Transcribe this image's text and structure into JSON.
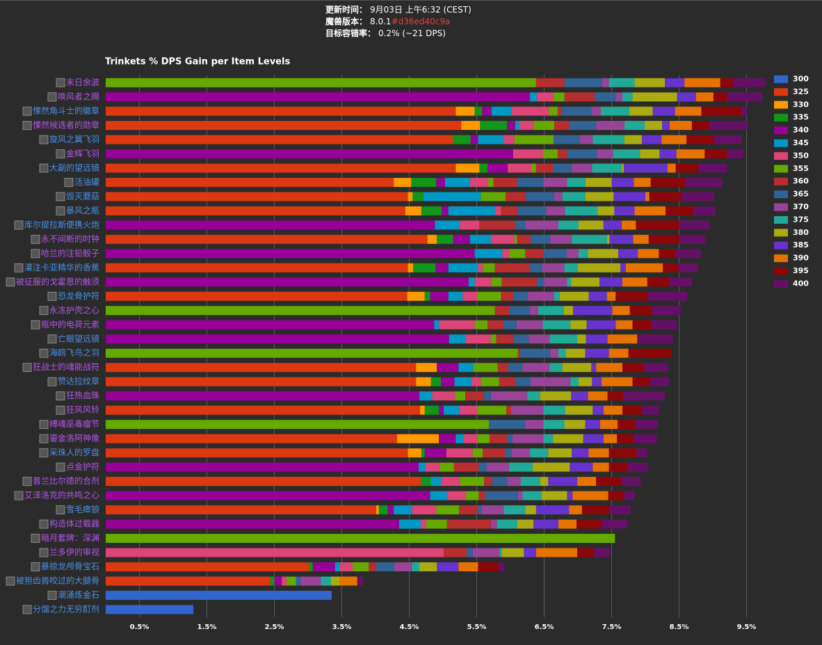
{
  "header": {
    "rows": [
      {
        "label": "更新时间：",
        "value": "9月03日 上午6:32 (CEST)"
      },
      {
        "label": "魔兽版本：",
        "value": "8.0.1",
        "extra": "#d36ed40c9a"
      },
      {
        "label": "目标容错率：",
        "value": "0.2% (~21 DPS)"
      }
    ]
  },
  "chart_data": {
    "type": "stacked_barh",
    "title": "Trinkets % DPS Gain per Item Levels",
    "categories": [
      "末日余波",
      "唤风者之赐",
      "慄然角斗士的徽章",
      "慄然候选者的勋章",
      "旋风之翼飞羽",
      "金辉飞羽",
      "大副的望远镜",
      "活油罐",
      "毁灭蘑菇",
      "暴风之瓶",
      "库尔提拉斯便携火炮",
      "永不间断的时钟",
      "哈兰的注铅骰子",
      "灌注卡亚精华的香蕉",
      "被征服的戈霍恩的触须",
      "恐龙骨护符",
      "永冻护壳之心",
      "瓶中的电荷元素",
      "亡眼望远镜",
      "海鸥飞鸟之羽",
      "狂战士的魂能战符",
      "赞达拉纹章",
      "狂热血珠",
      "狂风风铃",
      "缚魂巫毒瘤节",
      "鎏金洛阿神像",
      "采珠人的罗盘",
      "点金护符",
      "普兰比尔德的合剂",
      "艾泽洛克的共鸣之心",
      "雪毛瘴狼",
      "构造体过载器",
      "暗月套牌：深渊",
      "兰多伊的审视",
      "暴掠龙颅骨宝石",
      "被狍齿兽咬过的大腿骨",
      "潮涌炼金石",
      "分馏之力无穷酊剂"
    ],
    "category_colors": [
      "#b455e8",
      "#b455e8",
      "#4a8fe6",
      "#b455e8",
      "#4a8fe6",
      "#b455e8",
      "#4a8fe6",
      "#4a8fe6",
      "#4a8fe6",
      "#4a8fe6",
      "#4a8fe6",
      "#b455e8",
      "#b455e8",
      "#4a8fe6",
      "#b455e8",
      "#4a8fe6",
      "#b455e8",
      "#b455e8",
      "#4a8fe6",
      "#4a8fe6",
      "#b455e8",
      "#4a8fe6",
      "#b455e8",
      "#b455e8",
      "#b455e8",
      "#b455e8",
      "#4a8fe6",
      "#b455e8",
      "#b455e8",
      "#b455e8",
      "#4a8fe6",
      "#b455e8",
      "#b455e8",
      "#b455e8",
      "#4a8fe6",
      "#4a8fe6",
      "#4a8fe6",
      "#4a8fe6"
    ],
    "xlim": [
      0,
      9.8
    ],
    "xticks": [
      {
        "value": 0.5,
        "label": "0.5%"
      },
      {
        "value": 1.5,
        "label": "1.5%"
      },
      {
        "value": 2.5,
        "label": "2.5%"
      },
      {
        "value": 3.5,
        "label": "3.5%"
      },
      {
        "value": 4.5,
        "label": "4.5%"
      },
      {
        "value": 5.5,
        "label": "5.5%"
      },
      {
        "value": 6.5,
        "label": "6.5%"
      },
      {
        "value": 7.5,
        "label": "7.5%"
      },
      {
        "value": 8.5,
        "label": "8.5%"
      },
      {
        "value": 9.5,
        "label": "9.5%"
      }
    ],
    "grid": true,
    "legend": "right",
    "series": [
      {
        "name": "300",
        "color": "#3366cc",
        "values": [
          null,
          null,
          null,
          null,
          null,
          null,
          null,
          null,
          null,
          null,
          null,
          null,
          null,
          null,
          null,
          null,
          null,
          null,
          null,
          null,
          null,
          null,
          null,
          null,
          null,
          null,
          null,
          null,
          null,
          null,
          null,
          null,
          null,
          null,
          null,
          null,
          3.35,
          1.3
        ]
      },
      {
        "name": "325",
        "color": "#dc3912",
        "values": [
          null,
          null,
          5.19,
          5.27,
          5.15,
          null,
          5.19,
          4.27,
          4.48,
          4.44,
          null,
          4.77,
          null,
          4.48,
          null,
          4.47,
          null,
          null,
          null,
          null,
          4.6,
          4.6,
          null,
          4.66,
          null,
          4.32,
          4.48,
          null,
          4.67,
          null,
          4.01,
          null,
          null,
          null,
          3.01,
          2.44,
          null,
          null
        ]
      },
      {
        "name": "330",
        "color": "#ff9900",
        "values": [
          null,
          null,
          0.28,
          0.28,
          null,
          null,
          0.35,
          0.26,
          0.07,
          0.24,
          null,
          0.14,
          null,
          0.08,
          null,
          0.26,
          null,
          null,
          null,
          null,
          0.31,
          0.22,
          null,
          0.07,
          null,
          0.62,
          0.2,
          null,
          null,
          null,
          0.04,
          null,
          null,
          null,
          null,
          null,
          null,
          null
        ]
      },
      {
        "name": "335",
        "color": "#109618",
        "values": [
          null,
          null,
          0.11,
          0.4,
          0.26,
          null,
          0.12,
          0.37,
          0.16,
          0.3,
          null,
          0.24,
          null,
          0.33,
          null,
          0.08,
          null,
          null,
          null,
          null,
          null,
          0.15,
          null,
          0.21,
          null,
          null,
          0.05,
          null,
          0.15,
          null,
          0.13,
          null,
          null,
          null,
          0.06,
          0.06,
          null,
          null
        ]
      },
      {
        "name": "340",
        "color": "#990099",
        "values": [
          null,
          6.29,
          0.14,
          0.12,
          0.11,
          6.04,
          0.3,
          0.13,
          null,
          0.1,
          4.88,
          0.25,
          5.47,
          0.19,
          5.38,
          0.27,
          null,
          4.87,
          5.09,
          null,
          0.32,
          0.2,
          4.65,
          0.07,
          null,
          0.25,
          0.32,
          4.64,
          null,
          4.81,
          0.09,
          4.35,
          null,
          null,
          0.33,
          0.11,
          null,
          null
        ]
      },
      {
        "name": "345",
        "color": "#0099c6",
        "values": [
          null,
          0.1,
          0.3,
          0.06,
          0.38,
          null,
          null,
          0.37,
          0.85,
          0.69,
          0.37,
          0.31,
          0.41,
          0.44,
          0.09,
          0.21,
          null,
          0.07,
          0.25,
          null,
          0.22,
          0.25,
          0.19,
          0.23,
          null,
          0.11,
          null,
          0.1,
          0.15,
          0.25,
          0.27,
          0.32,
          null,
          null,
          0.07,
          null,
          null,
          null
        ]
      },
      {
        "name": "350",
        "color": "#dd4477",
        "values": [
          null,
          0.25,
          0.55,
          0.22,
          0.16,
          0.44,
          0.35,
          0.27,
          null,
          0.09,
          0.29,
          0.35,
          0.11,
          0.07,
          0.25,
          0.22,
          null,
          0.53,
          0.37,
          null,
          null,
          0.14,
          0.34,
          0.27,
          null,
          0.21,
          0.39,
          0.21,
          0.28,
          0.28,
          0.36,
          0.08,
          null,
          5.01,
          0.19,
          0.07,
          null,
          null
        ]
      },
      {
        "name": "355",
        "color": "#66aa00",
        "values": [
          6.38,
          0.16,
          0.13,
          0.3,
          0.58,
          0.22,
          0.07,
          0.08,
          0.37,
          null,
          null,
          0.04,
          0.23,
          0.18,
          0.15,
          0.35,
          5.77,
          0.19,
          0.08,
          6.11,
          0.36,
          0.27,
          0.15,
          0.43,
          5.68,
          0.18,
          0.15,
          0.21,
          0.36,
          0.19,
          0.34,
          0.31,
          7.55,
          null,
          0.24,
          0.14,
          null,
          null
        ]
      },
      {
        "name": "360",
        "color": "#b82e2e",
        "values": [
          0.42,
          0.45,
          0.06,
          0.22,
          null,
          0.14,
          0.25,
          0.35,
          0.3,
          0.25,
          0.53,
          0.2,
          0.27,
          0.52,
          0.52,
          0.18,
          0.22,
          0.24,
          0.26,
          0.03,
          0.16,
          0.24,
          0.28,
          0.07,
          null,
          0.26,
          0.33,
          0.37,
          0.12,
          0.09,
          0.28,
          0.65,
          null,
          0.34,
          0.11,
          null,
          null,
          null
        ]
      },
      {
        "name": "365",
        "color": "#316395",
        "values": [
          0.56,
          0.31,
          0.44,
          0.4,
          0.39,
          0.44,
          0.28,
          0.39,
          0.42,
          0.42,
          0.15,
          0.29,
          0.34,
          0.18,
          0.11,
          0.22,
          0.3,
          0.19,
          0.22,
          0.45,
          0.21,
          0.23,
          0.1,
          null,
          0.54,
          0.08,
          0.1,
          0.12,
          0.22,
          0.49,
          0.05,
          null,
          null,
          0.09,
          0.27,
          0.07,
          null,
          null
        ]
      },
      {
        "name": "370",
        "color": "#994499",
        "values": [
          0.1,
          0.1,
          0.14,
          0.42,
          0.19,
          0.24,
          0.3,
          0.35,
          0.12,
          0.28,
          0.49,
          0.32,
          0.18,
          0.33,
          0.34,
          0.39,
          0.12,
          0.39,
          0.31,
          0.12,
          0.4,
          0.59,
          0.54,
          0.48,
          0.27,
          0.46,
          0.27,
          0.33,
          0.2,
          0.07,
          0.33,
          0.09,
          null,
          0.4,
          0.26,
          0.3,
          null,
          null
        ]
      },
      {
        "name": "375",
        "color": "#22aa99",
        "values": [
          0.38,
          0.15,
          0.42,
          0.3,
          0.47,
          0.4,
          0.44,
          0.27,
          0.34,
          0.48,
          0.3,
          0.52,
          0.14,
          0.2,
          0.06,
          0.08,
          0.38,
          0.41,
          0.41,
          0.11,
          0.19,
          0.12,
          0.19,
          0.32,
          0.31,
          0.14,
          0.27,
          0.35,
          0.29,
          0.28,
          0.32,
          0.3,
          null,
          0.03,
          0.11,
          0.15,
          null,
          null
        ]
      },
      {
        "name": "380",
        "color": "#aaaa11",
        "values": [
          0.45,
          0.66,
          0.35,
          0.26,
          0.26,
          0.29,
          0.03,
          0.39,
          0.42,
          0.25,
          0.37,
          0.04,
          0.45,
          0.63,
          0.42,
          0.43,
          0.14,
          0.24,
          0.13,
          0.29,
          0.43,
          0.2,
          0.46,
          0.41,
          0.31,
          0.45,
          0.35,
          0.55,
          0.12,
          0.38,
          0.16,
          0.24,
          null,
          0.33,
          0.26,
          0.13,
          null,
          null
        ]
      },
      {
        "name": "385",
        "color": "#6633cc",
        "values": [
          0.29,
          0.28,
          0.33,
          0.11,
          0.29,
          0.25,
          0.65,
          0.33,
          0.47,
          0.3,
          0.27,
          0.35,
          0.29,
          0.08,
          0.34,
          0.27,
          0.58,
          0.43,
          0.32,
          0.35,
          0.07,
          0.14,
          0.25,
          0.16,
          0.22,
          0.3,
          0.25,
          0.34,
          0.43,
          0.08,
          0.49,
          0.37,
          null,
          0.18,
          0.32,
          null,
          null,
          null
        ]
      },
      {
        "name": "390",
        "color": "#e67300",
        "values": [
          0.53,
          0.26,
          0.39,
          0.33,
          0.37,
          0.42,
          0.12,
          0.25,
          0.06,
          0.46,
          0.21,
          0.23,
          0.31,
          0.55,
          0.37,
          0.13,
          0.26,
          0.25,
          0.44,
          0.29,
          0.39,
          0.46,
          0.29,
          0.28,
          0.26,
          0.2,
          0.3,
          0.24,
          0.28,
          0.53,
          0.19,
          0.27,
          null,
          0.61,
          0.29,
          0.26,
          null,
          null
        ]
      },
      {
        "name": "395",
        "color": "#8b0707",
        "values": [
          0.2,
          0.2,
          0.6,
          0.26,
          0.41,
          0.33,
          0.34,
          0.52,
          0.47,
          0.41,
          0.64,
          0.45,
          0.25,
          0.23,
          0.33,
          0.48,
          0.33,
          0.28,
          null,
          0.63,
          0.32,
          0.26,
          0.23,
          0.29,
          0.26,
          0.24,
          0.41,
          0.28,
          0.38,
          0.24,
          0.4,
          0.36,
          null,
          0.25,
          0.3,
          null,
          null,
          null
        ]
      },
      {
        "name": "400",
        "color": "#651067",
        "values": [
          0.47,
          0.52,
          0.08,
          0.57,
          0.41,
          0.24,
          0.42,
          0.54,
          0.49,
          0.33,
          0.45,
          0.39,
          0.37,
          0.29,
          0.33,
          0.58,
          0.43,
          0.38,
          0.53,
          null,
          0.36,
          0.28,
          0.62,
          0.25,
          0.33,
          0.35,
          0.16,
          0.3,
          0.28,
          0.15,
          0.32,
          0.39,
          null,
          0.24,
          0.09,
          0.09,
          null,
          null
        ]
      }
    ]
  }
}
